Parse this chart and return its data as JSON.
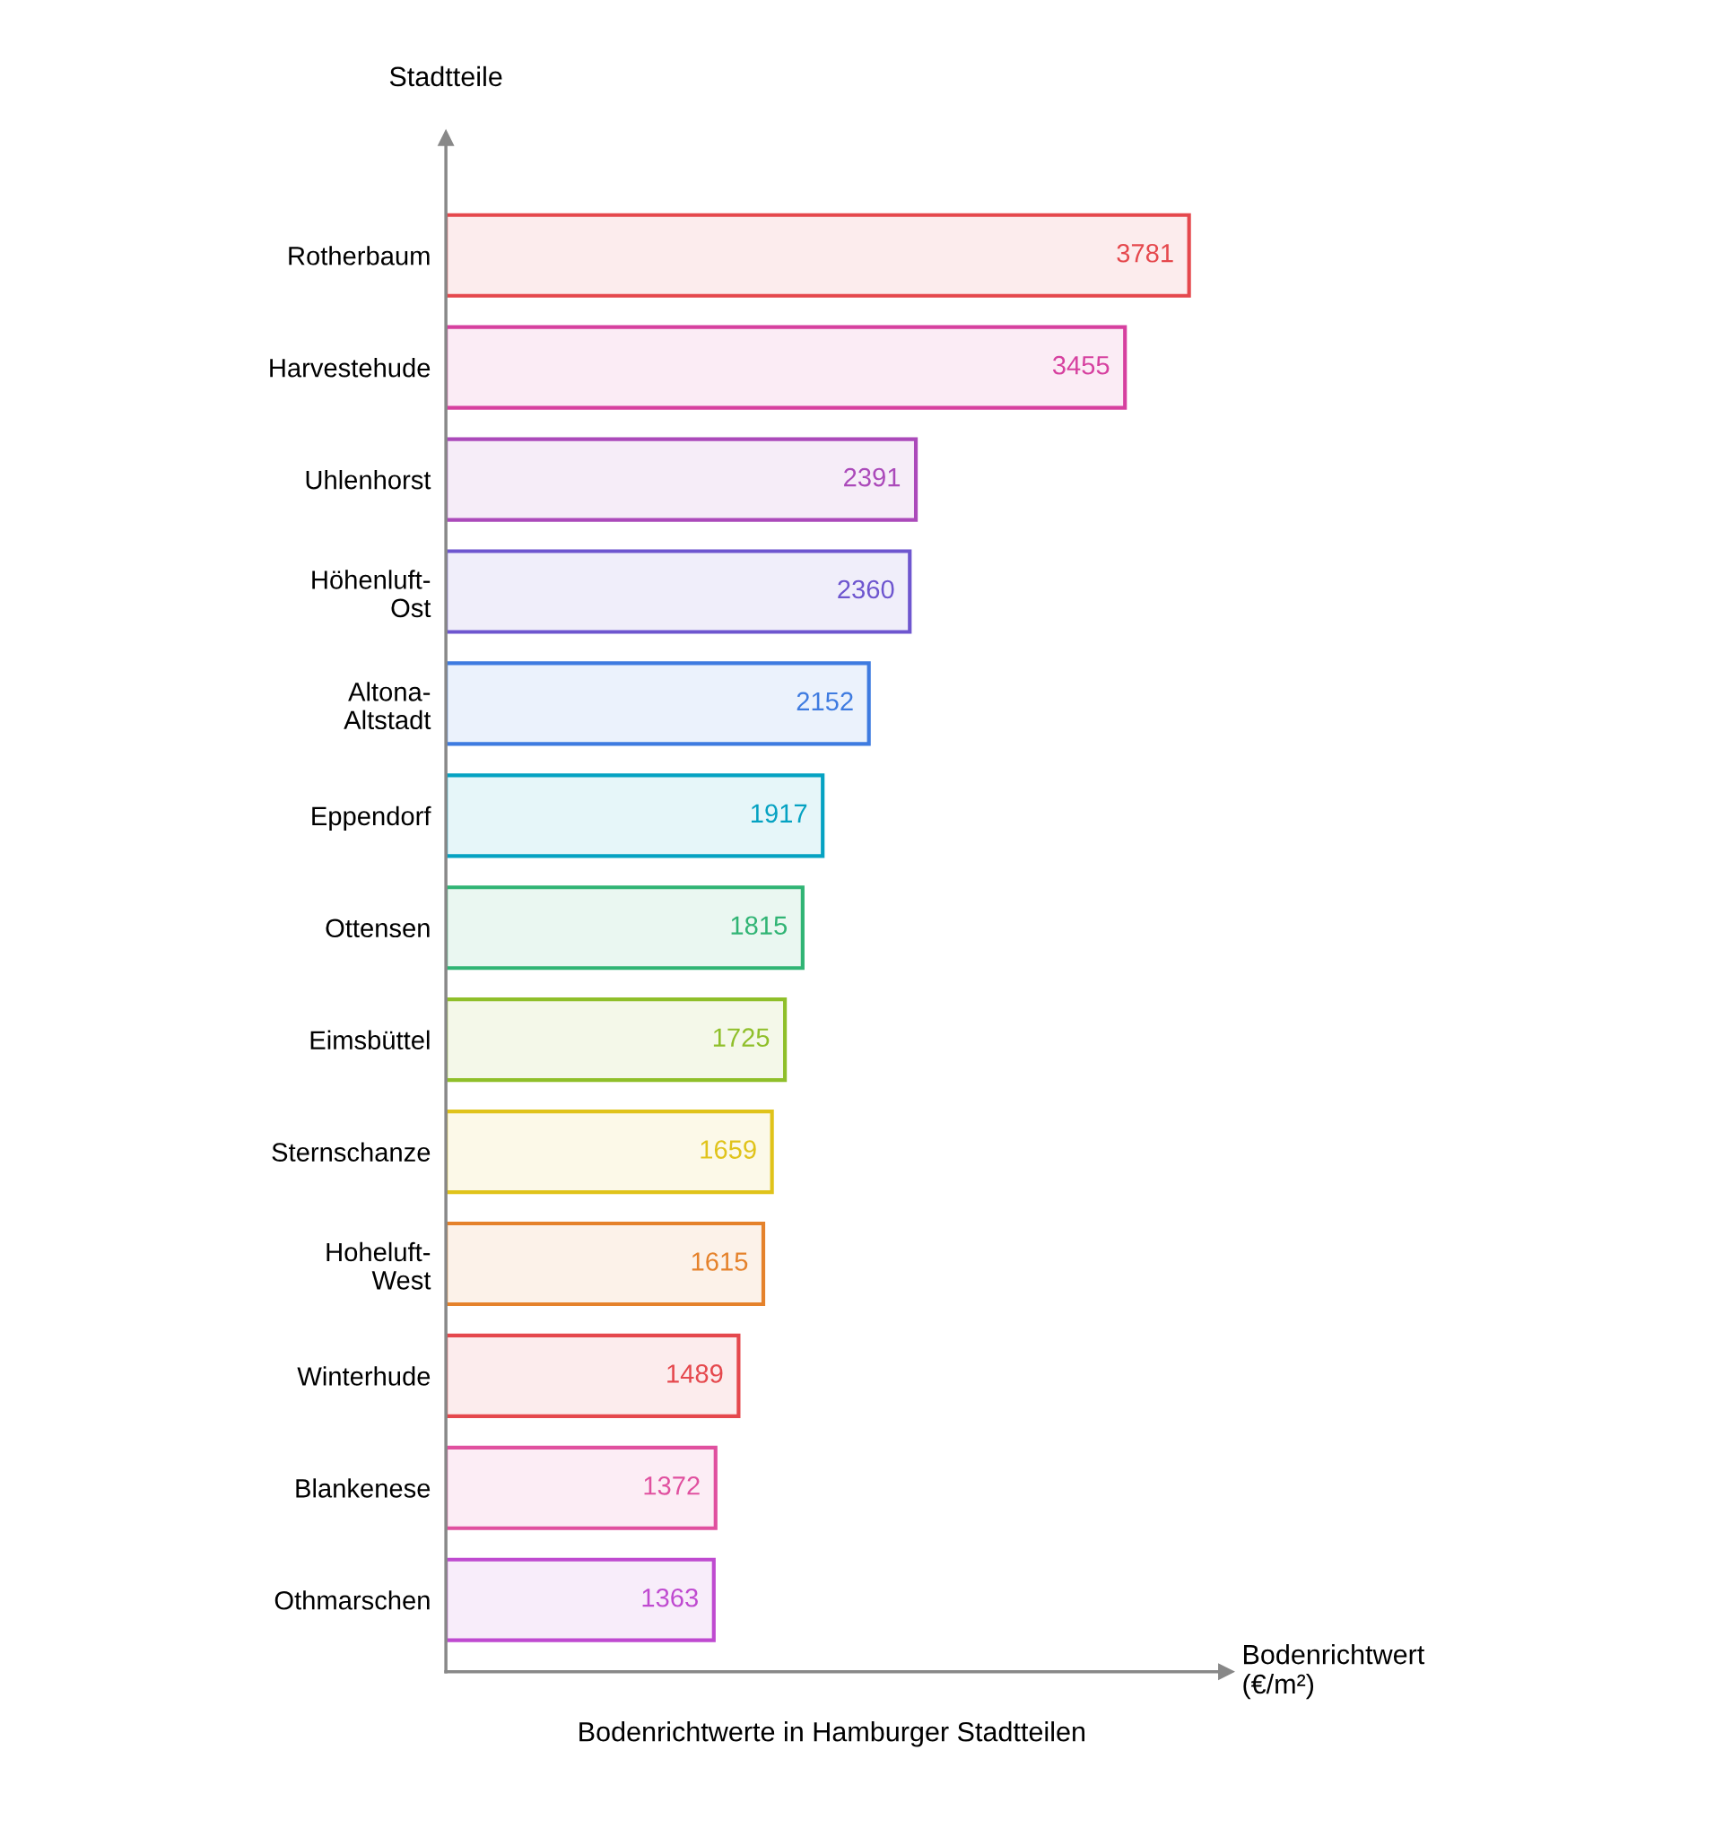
{
  "chart_data": {
    "type": "bar",
    "orientation": "horizontal",
    "title": "Bodenrichtwerte in Hamburger Stadtteilen",
    "xlabel": "Bodenrichtwert\n(€/m²)",
    "ylabel": "Stadtteile",
    "categories": [
      "Rotherbaum",
      "Harvestehude",
      "Uhlenhorst",
      "Höhenluft-\nOst",
      "Altona-\nAltstadt",
      "Eppendorf",
      "Ottensen",
      "Eimsbüttel",
      "Sternschanze",
      "Hoheluft-\nWest",
      "Winterhude",
      "Blankenese",
      "Othmarschen"
    ],
    "values": [
      3781,
      3455,
      2391,
      2360,
      2152,
      1917,
      1815,
      1725,
      1659,
      1615,
      1489,
      1372,
      1363
    ],
    "colors": [
      "#e5484d",
      "#d6409f",
      "#ab4aba",
      "#6e56cf",
      "#3e7be0",
      "#05a2c2",
      "#30b474",
      "#8fbf2a",
      "#e0c31a",
      "#e5822b",
      "#e5484d",
      "#e0509f",
      "#bf4ad0"
    ],
    "data_labels": true,
    "grid": false,
    "legend": false,
    "tick_labels": "y"
  }
}
